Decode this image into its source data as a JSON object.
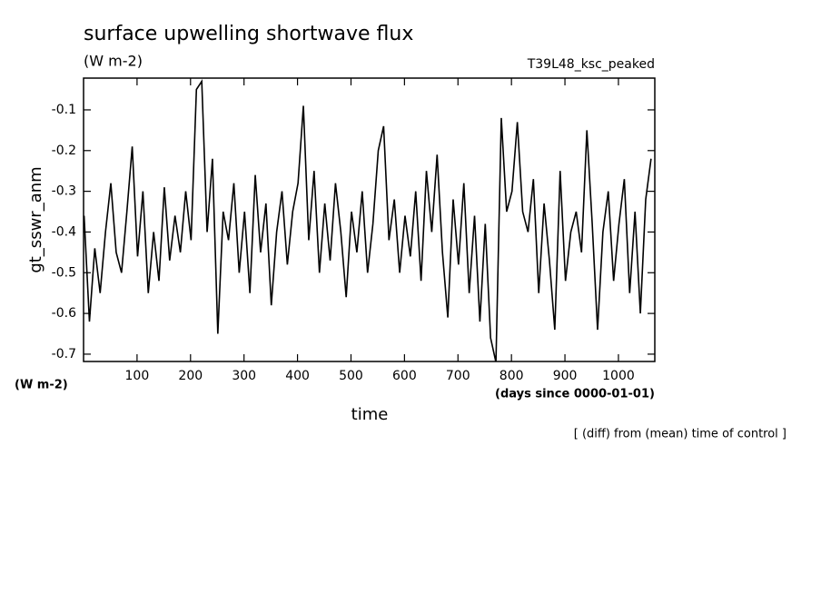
{
  "chart_data": {
    "type": "line",
    "title": "surface upwelling shortwave flux",
    "subtitle": "(W m-2)",
    "experiment": "T39L48_ksc_peaked",
    "ylabel": "gt_sswr_anm",
    "yunits": "(W m-2)",
    "xlabel": "time",
    "xunits": "(days since 0000-01-01)",
    "note": "[ (diff) from (mean) time of control ]",
    "x": [
      1,
      11,
      21,
      31,
      41,
      51,
      61,
      71,
      81,
      91,
      101,
      111,
      121,
      131,
      141,
      151,
      161,
      171,
      181,
      191,
      201,
      211,
      221,
      231,
      241,
      251,
      261,
      271,
      281,
      291,
      301,
      311,
      321,
      331,
      341,
      351,
      361,
      371,
      381,
      391,
      401,
      411,
      421,
      431,
      441,
      451,
      461,
      471,
      481,
      491,
      501,
      511,
      521,
      531,
      541,
      551,
      561,
      571,
      581,
      591,
      601,
      611,
      621,
      631,
      641,
      651,
      661,
      671,
      681,
      691,
      701,
      711,
      721,
      731,
      741,
      751,
      761,
      771,
      781,
      791,
      801,
      811,
      821,
      831,
      841,
      851,
      861,
      871,
      881,
      891,
      901,
      911,
      921,
      931,
      941,
      951,
      961,
      971,
      981,
      991,
      1001,
      1011,
      1021,
      1031,
      1041,
      1051,
      1061
    ],
    "series": [
      {
        "name": "gt_sswr_anm",
        "color": "#000000",
        "values": [
          -0.36,
          -0.62,
          -0.44,
          -0.55,
          -0.4,
          -0.28,
          -0.45,
          -0.5,
          -0.35,
          -0.19,
          -0.46,
          -0.3,
          -0.55,
          -0.4,
          -0.52,
          -0.29,
          -0.47,
          -0.36,
          -0.45,
          -0.3,
          -0.42,
          -0.05,
          -0.03,
          -0.4,
          -0.22,
          -0.65,
          -0.35,
          -0.42,
          -0.28,
          -0.5,
          -0.35,
          -0.55,
          -0.26,
          -0.45,
          -0.33,
          -0.58,
          -0.4,
          -0.3,
          -0.48,
          -0.35,
          -0.28,
          -0.09,
          -0.42,
          -0.25,
          -0.5,
          -0.33,
          -0.47,
          -0.28,
          -0.4,
          -0.56,
          -0.35,
          -0.45,
          -0.3,
          -0.5,
          -0.38,
          -0.2,
          -0.14,
          -0.42,
          -0.32,
          -0.5,
          -0.36,
          -0.46,
          -0.3,
          -0.52,
          -0.25,
          -0.4,
          -0.21,
          -0.45,
          -0.61,
          -0.32,
          -0.48,
          -0.28,
          -0.55,
          -0.36,
          -0.62,
          -0.38,
          -0.66,
          -0.72,
          -0.12,
          -0.35,
          -0.3,
          -0.13,
          -0.35,
          -0.4,
          -0.27,
          -0.55,
          -0.33,
          -0.47,
          -0.64,
          -0.25,
          -0.52,
          -0.4,
          -0.35,
          -0.45,
          -0.15,
          -0.38,
          -0.64,
          -0.4,
          -0.3,
          -0.52,
          -0.38,
          -0.27,
          -0.55,
          -0.35,
          -0.6,
          -0.32,
          -0.22
        ]
      }
    ],
    "xlim": [
      0,
      1068
    ],
    "ylim": [
      -0.718,
      -0.022
    ],
    "xticks": [
      100,
      200,
      300,
      400,
      500,
      600,
      700,
      800,
      900,
      1000
    ],
    "yticks": [
      -0.7,
      -0.6,
      -0.5,
      -0.4,
      -0.3,
      -0.2,
      -0.1
    ]
  }
}
